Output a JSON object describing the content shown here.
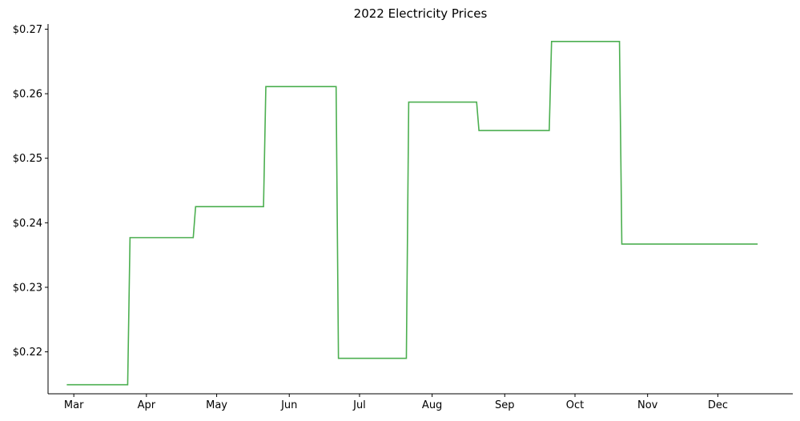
{
  "chart_data": {
    "type": "line",
    "title": "2022 Electricity Prices",
    "xlabel": "",
    "ylabel": "",
    "x_ticks": [
      "Mar",
      "Apr",
      "May",
      "Jun",
      "Jul",
      "Aug",
      "Sep",
      "Oct",
      "Nov",
      "Dec"
    ],
    "y_ticks": [
      "$0.22",
      "$0.23",
      "$0.24",
      "$0.25",
      "$0.26",
      "$0.27"
    ],
    "ylim": [
      0.2135,
      0.2708
    ],
    "xlim": [
      "2022-02-18",
      "2023-01-02"
    ],
    "grid": false,
    "line_color": "#4caf50",
    "series": [
      {
        "x": [
          "2022-02-26",
          "2022-03-24",
          "2022-03-25",
          "2022-04-21",
          "2022-04-22",
          "2022-05-21",
          "2022-05-22",
          "2022-06-21",
          "2022-06-22",
          "2022-07-21",
          "2022-07-22",
          "2022-08-20",
          "2022-08-21",
          "2022-09-20",
          "2022-09-21",
          "2022-10-20",
          "2022-10-21",
          "2022-12-18"
        ],
        "y": [
          0.2149,
          0.2149,
          0.2377,
          0.2377,
          0.2425,
          0.2425,
          0.2611,
          0.2611,
          0.219,
          0.219,
          0.2587,
          0.2587,
          0.2543,
          0.2543,
          0.2681,
          0.2681,
          0.2367,
          0.2367
        ]
      }
    ]
  }
}
